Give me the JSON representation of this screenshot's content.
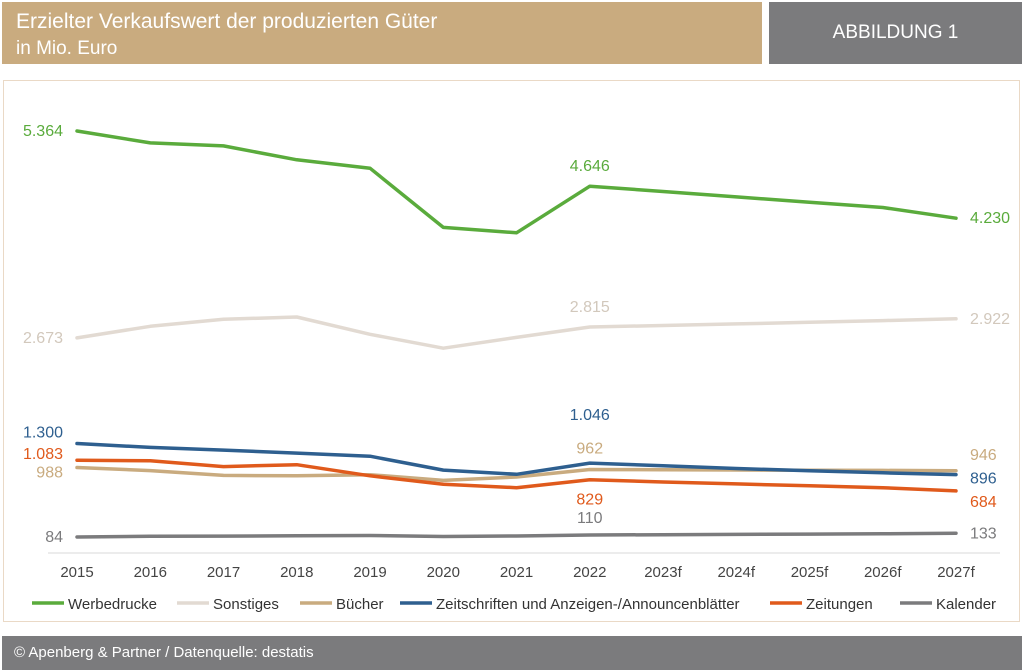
{
  "header": {
    "title": "Erzielter Verkaufswert der produzierten Güter",
    "subtitle": "in Mio. Euro",
    "figure_label": "ABBILDUNG 1"
  },
  "footer": {
    "text": "© Apenberg & Partner / Datenquelle: destatis"
  },
  "chart_data": {
    "type": "line",
    "title": "Erzielter Verkaufswert der produzierten Güter",
    "ylabel": "in Mio. Euro",
    "xlabel": "",
    "categories": [
      "2015",
      "2016",
      "2017",
      "2018",
      "2019",
      "2020",
      "2021",
      "2022",
      "2023f",
      "2024f",
      "2025f",
      "2026f",
      "2027f"
    ],
    "grid": false,
    "legend_position": "bottom",
    "series": [
      {
        "name": "Werbedrucke",
        "color": "#5aab3c",
        "values": [
          5364,
          5210,
          5170,
          4990,
          4880,
          4110,
          4040,
          4646,
          4577,
          4507,
          4438,
          4369,
          4230
        ],
        "labels": [
          {
            "index": 0,
            "text": "5.364"
          },
          {
            "index": 7,
            "text": "4.646"
          },
          {
            "index": 12,
            "text": "4.230"
          }
        ]
      },
      {
        "name": "Sonstiges",
        "color": "#e2dad2",
        "values": [
          2673,
          2825,
          2915,
          2945,
          2720,
          2540,
          2680,
          2815,
          2835,
          2856,
          2877,
          2898,
          2922
        ],
        "labels": [
          {
            "index": 0,
            "text": "2.673"
          },
          {
            "index": 7,
            "text": "2.815"
          },
          {
            "index": 12,
            "text": "2.922"
          }
        ]
      },
      {
        "name": "Bücher",
        "color": "#c9ab7f",
        "values": [
          988,
          948,
          885,
          880,
          895,
          820,
          865,
          962,
          960,
          956,
          953,
          950,
          946
        ],
        "labels": [
          {
            "index": 0,
            "text": "988"
          },
          {
            "index": 7,
            "text": "962"
          },
          {
            "index": 12,
            "text": "946"
          }
        ]
      },
      {
        "name": "Zeitschriften und Anzeigen-/Announcenblätter",
        "color": "#2e5f8f",
        "values": [
          1300,
          1250,
          1215,
          1175,
          1135,
          955,
          900,
          1046,
          1010,
          975,
          945,
          920,
          896
        ],
        "labels": [
          {
            "index": 0,
            "text": "1.300"
          },
          {
            "index": 7,
            "text": "1.046"
          },
          {
            "index": 12,
            "text": "896"
          }
        ]
      },
      {
        "name": "Zeitungen",
        "color": "#e05a1c",
        "values": [
          1083,
          1075,
          1000,
          1025,
          880,
          770,
          725,
          829,
          800,
          775,
          750,
          725,
          684
        ],
        "labels": [
          {
            "index": 0,
            "text": "1.083"
          },
          {
            "index": 7,
            "text": "829"
          },
          {
            "index": 12,
            "text": "684"
          }
        ]
      },
      {
        "name": "Kalender",
        "color": "#7b7b7d",
        "values": [
          84,
          93,
          96,
          100,
          104,
          91,
          97,
          110,
          114,
          118,
          122,
          126,
          133
        ],
        "labels": [
          {
            "index": 0,
            "text": "84"
          },
          {
            "index": 7,
            "text": "110"
          },
          {
            "index": 12,
            "text": "133"
          }
        ]
      }
    ]
  }
}
